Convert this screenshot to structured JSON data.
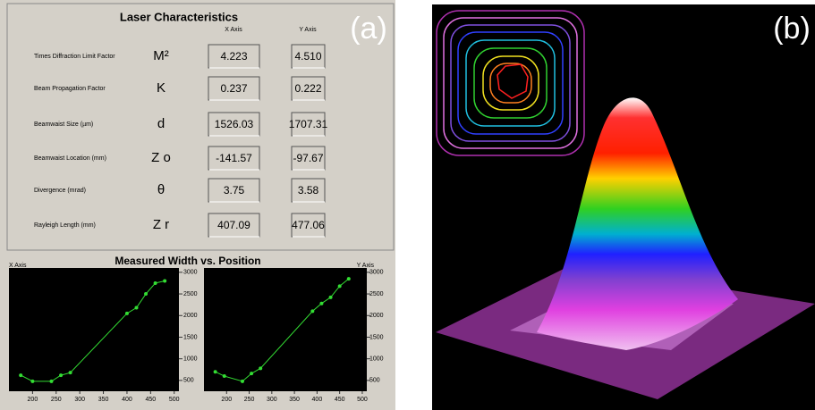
{
  "panel_a": {
    "label": "(a)",
    "title": "Laser Characteristics",
    "column_headers": [
      "X Axis",
      "Y Axis"
    ],
    "rows": [
      {
        "name": "Times Diffraction Limit Factor",
        "symbol": "M²",
        "x": "4.223",
        "y": "4.510"
      },
      {
        "name": "Beam Propagation Factor",
        "symbol": "K",
        "x": "0.237",
        "y": "0.222"
      },
      {
        "name": "Beamwaist Size (µm)",
        "symbol": "d",
        "x": "1526.03",
        "y": "1707.31"
      },
      {
        "name": "Beamwaist Location (mm)",
        "symbol": "Z o",
        "x": "-141.57",
        "y": "-97.67"
      },
      {
        "name": "Divergence (mrad)",
        "symbol": "θ",
        "x": "3.75",
        "y": "3.58"
      },
      {
        "name": "Rayleigh Length (mm)",
        "symbol": "Z r",
        "x": "407.09",
        "y": "477.06"
      }
    ],
    "chart_title": "Measured Width vs. Position"
  },
  "panel_b": {
    "label": "(b)"
  },
  "chart_data": [
    {
      "type": "line",
      "axis_label": "X Axis",
      "color": "#33dd33",
      "x": [
        175,
        200,
        240,
        260,
        280,
        400,
        420,
        440,
        460,
        480
      ],
      "values": [
        620,
        480,
        480,
        620,
        680,
        2050,
        2180,
        2500,
        2750,
        2800
      ],
      "xlim": [
        150,
        510
      ],
      "xticks": [
        200,
        250,
        300,
        350,
        400,
        450,
        500
      ],
      "ylim": [
        250,
        3100
      ],
      "yticks": [
        500,
        1000,
        1500,
        2000,
        2500,
        3000
      ]
    },
    {
      "type": "line",
      "axis_label": "Y Axis",
      "color": "#33dd33",
      "x": [
        175,
        195,
        235,
        255,
        275,
        390,
        410,
        430,
        450,
        470
      ],
      "values": [
        700,
        600,
        480,
        660,
        780,
        2100,
        2280,
        2420,
        2680,
        2850
      ],
      "xlim": [
        150,
        510
      ],
      "xticks": [
        200,
        250,
        300,
        350,
        400,
        450,
        500
      ],
      "ylim": [
        250,
        3100
      ],
      "yticks": [
        500,
        1000,
        1500,
        2000,
        2500,
        3000
      ]
    }
  ]
}
